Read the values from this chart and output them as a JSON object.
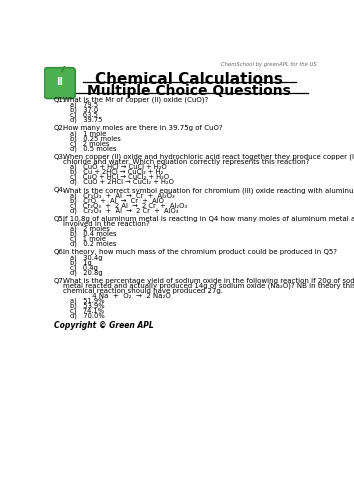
{
  "title1": "Chemical Calculations",
  "title2": "Multiple Choice Questions",
  "watermark": "ChemSchool by greenAPL for the US",
  "questions": [
    {
      "num": "Q1.",
      "text": "What is the Mr of copper (II) oxide (CuO)?",
      "options": [
        "a)   79.5",
        "b)   37.0",
        "c)   63.5",
        "d)   39.75"
      ]
    },
    {
      "num": "Q2.",
      "text": "How many moles are there in 39.75g of CuO?",
      "options": [
        "a)   1 mole",
        "b)   0.25 moles",
        "c)   2 moles",
        "d)   0.5 moles"
      ]
    },
    {
      "num": "Q3.",
      "text": "When copper (II) oxide and hydrochloric acid react together they produce copper (II)\nchloride and water. Which equation correctly represents this reaction?",
      "options": [
        "a)   CuO + HCl → CuCl + H₂O",
        "b)   Cu + 2HCl → CuCl₂ + H₂",
        "c)   CuO + HCl → CuCl₂ + H₂O",
        "d)   CuO + 2HCl → CuCl₂ + H₂O"
      ]
    },
    {
      "num": "Q4.",
      "text": "What is the correct symbol equation for chromium (III) oxide reacting with aluminum?",
      "options": [
        "a)   Cr₂O₃  +  Al  →  Cr  +  Al₂O₃",
        "b)   CrO  +  Al  →  Cr  +  AlO",
        "c)   Cr₂O₃  +  2 Al  →  2 Cr  +  Al₂O₃",
        "d)   Cr₂O₃  +  Al  →  2 Cr  +  AlO₃"
      ]
    },
    {
      "num": "Q5.",
      "text": "If 10.8g of aluminum metal is reacting in Q4 how many moles of aluminum metal are\ninvolved in the reaction?",
      "options": [
        "a)   2 moles",
        "b)   0.4 moles",
        "c)   1 mole",
        "d)   0.2 moles"
      ]
    },
    {
      "num": "Q6.",
      "text": "In theory, how much mass of the chromium product could be produced in Q5?",
      "options": [
        "a)   30.4g",
        "b)   1g",
        "c)   0.4g",
        "d)   20.8g"
      ]
    },
    {
      "num": "Q7.",
      "text": "What is the percentage yield of sodium oxide in the following reaction if 20g of sodium\nmetal reacted and actually produced 14g of sodium oxide (Na₂O)? NB in theory this\nchemical reaction should have produced 27g.\n             4 Na  +  O₂  →  2 Na₂O",
      "options": [
        "a)   51.9%",
        "b)   53.9%",
        "c)   74.1%",
        "d)   70.0%"
      ]
    }
  ],
  "copyright": "Copyright © Green APL",
  "bg_color": "#ffffff",
  "text_color": "#000000",
  "apple_green": "#4caf50",
  "apple_dark": "#388e3c"
}
